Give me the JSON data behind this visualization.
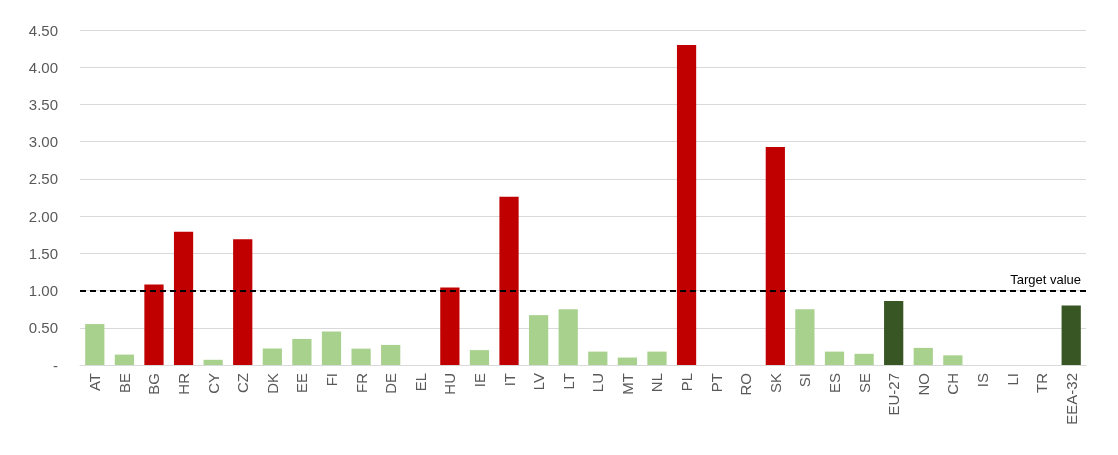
{
  "chart_data": {
    "type": "bar",
    "categories": [
      "AT",
      "BE",
      "BG",
      "HR",
      "CY",
      "CZ",
      "DK",
      "EE",
      "FI",
      "FR",
      "DE",
      "EL",
      "HU",
      "IE",
      "IT",
      "LV",
      "LT",
      "LU",
      "MT",
      "NL",
      "PL",
      "PT",
      "RO",
      "SK",
      "SI",
      "ES",
      "SE",
      "EU-27",
      "NO",
      "CH",
      "IS",
      "LI",
      "TR",
      "EEA-32"
    ],
    "values": [
      0.55,
      0.14,
      1.08,
      1.79,
      0.07,
      1.69,
      0.22,
      0.35,
      0.45,
      0.22,
      0.27,
      0,
      1.04,
      0.2,
      2.26,
      0.67,
      0.75,
      0.18,
      0.1,
      0.18,
      4.3,
      0,
      0,
      2.93,
      0.75,
      0.18,
      0.15,
      0.86,
      0.23,
      0.13,
      0,
      0,
      0,
      0.8
    ],
    "colors": [
      "#a9d18e",
      "#a9d18e",
      "#c00000",
      "#c00000",
      "#a9d18e",
      "#c00000",
      "#a9d18e",
      "#a9d18e",
      "#a9d18e",
      "#a9d18e",
      "#a9d18e",
      "#a9d18e",
      "#c00000",
      "#a9d18e",
      "#c00000",
      "#a9d18e",
      "#a9d18e",
      "#a9d18e",
      "#a9d18e",
      "#a9d18e",
      "#c00000",
      "#a9d18e",
      "#a9d18e",
      "#c00000",
      "#a9d18e",
      "#a9d18e",
      "#a9d18e",
      "#375623",
      "#a9d18e",
      "#a9d18e",
      "#a9d18e",
      "#a9d18e",
      "#a9d18e",
      "#375623"
    ],
    "ylim": [
      0,
      4.5
    ],
    "yticks": [
      {
        "value": 0,
        "label": "-"
      },
      {
        "value": 0.5,
        "label": "0.50"
      },
      {
        "value": 1,
        "label": "1.00"
      },
      {
        "value": 1.5,
        "label": "1.50"
      },
      {
        "value": 2,
        "label": "2.00"
      },
      {
        "value": 2.5,
        "label": "2.50"
      },
      {
        "value": 3,
        "label": "3.00"
      },
      {
        "value": 3.5,
        "label": "3.50"
      },
      {
        "value": 4,
        "label": "4.00"
      },
      {
        "value": 4.5,
        "label": "4.50"
      }
    ],
    "ref_lines": [
      {
        "axis": "y",
        "value": 1,
        "label": "Target value",
        "color": "#000000",
        "line_style": "dashed"
      }
    ],
    "grid": "y"
  }
}
